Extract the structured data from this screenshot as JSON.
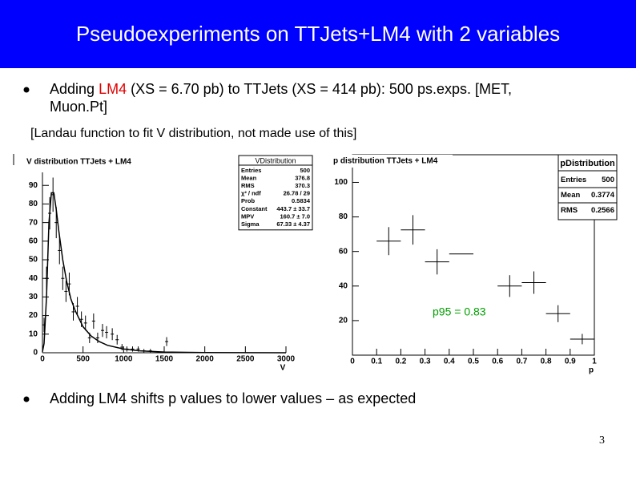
{
  "header": {
    "title": "Pseudoexperiments on TTJets+LM4 with 2 variables"
  },
  "bullets": [
    {
      "lines": [
        [
          "Adding ",
          "LM4",
          " (XS = 6.70 pb) to TTJets (XS = 414 pb): 500 ps.exps. [MET,"
        ],
        [
          "Muon.Pt]"
        ]
      ]
    },
    {
      "lines": [
        [
          "Adding LM4 shifts p values to lower values – as expected"
        ]
      ]
    }
  ],
  "note": "[Landau function to fit V distribution, not made use of this]",
  "page_number": "3",
  "chart_data": [
    {
      "type": "scatter",
      "title": "V distribution TTJets + LM4",
      "xlabel": "V",
      "x": [
        20,
        50,
        90,
        130,
        170,
        210,
        250,
        290,
        330,
        380,
        430,
        480,
        530,
        580,
        630,
        680,
        740,
        790,
        860,
        920,
        980,
        1040,
        1110,
        1180,
        1250,
        1330,
        1530
      ],
      "values": [
        15,
        40,
        75,
        85,
        70,
        55,
        40,
        33,
        37,
        22,
        25,
        18,
        16,
        8,
        17,
        8,
        12,
        11,
        10,
        7,
        3,
        2,
        2,
        2,
        1,
        1,
        6
      ],
      "errors": [
        3.9,
        6.3,
        8.7,
        9.2,
        8.4,
        7.4,
        6.3,
        5.7,
        6.1,
        4.7,
        5,
        4.2,
        4,
        2.8,
        4.1,
        2.8,
        3.5,
        3.3,
        3.2,
        2.6,
        1.7,
        1.4,
        1.4,
        1.4,
        1,
        1,
        2.4
      ],
      "fit": {
        "x": [
          0,
          20,
          50,
          80,
          110,
          140,
          170,
          200,
          250,
          300,
          350,
          400,
          500,
          600,
          700,
          800,
          1000,
          1200,
          1500,
          2000,
          3000
        ],
        "values": [
          0.5,
          5,
          30,
          70,
          86,
          86,
          77,
          66,
          50,
          38,
          29,
          23,
          14,
          9,
          6,
          4,
          2,
          1,
          0.4,
          0.1,
          0
        ]
      },
      "xlim": [
        0,
        3000
      ],
      "xticks": [
        0,
        500,
        1000,
        1500,
        2000,
        2500,
        3000
      ],
      "ylim": [
        0,
        97
      ],
      "yticks": [
        0,
        10,
        20,
        30,
        40,
        50,
        60,
        70,
        80,
        90
      ],
      "stats": {
        "name": "VDistribution",
        "rows": [
          [
            "Entries",
            "500"
          ],
          [
            "Mean",
            "376.8"
          ],
          [
            "RMS",
            "370.3"
          ],
          [
            "χ² / ndf",
            "26.78 / 29"
          ],
          [
            "Prob",
            "0.5834"
          ],
          [
            "Constant",
            "443.7 ± 33.7"
          ],
          [
            "MPV",
            "160.7 ± 7.0"
          ],
          [
            "Sigma",
            "67.33 ± 4.37"
          ]
        ]
      }
    },
    {
      "type": "histogram",
      "title": "p distribution TTJets + LM4",
      "xlabel": "p",
      "bins": [
        0,
        0.1,
        0.2,
        0.3,
        0.4,
        0.5,
        0.6,
        0.7,
        0.8,
        0.9,
        1
      ],
      "values": [
        null,
        66,
        72.5,
        54,
        58.6,
        null,
        40,
        42,
        24,
        9.3
      ],
      "errors": [
        null,
        8.1,
        8.5,
        7.3,
        0,
        null,
        6.3,
        6.5,
        4.9,
        3
      ],
      "xlim": [
        0,
        1
      ],
      "xticks": [
        0,
        0.1,
        0.2,
        0.3,
        0.4,
        0.5,
        0.6,
        0.7,
        0.8,
        0.9,
        1
      ],
      "ylim": [
        0,
        116
      ],
      "yticks": [
        20,
        40,
        60,
        80,
        100
      ],
      "annotation": "p95 = 0.83",
      "annotation_color": "#00a000",
      "stats": {
        "name": "pDistribution",
        "rows": [
          [
            "Entries",
            "500"
          ],
          [
            "Mean",
            "0.3774"
          ],
          [
            "RMS",
            "0.2566"
          ]
        ]
      }
    }
  ]
}
